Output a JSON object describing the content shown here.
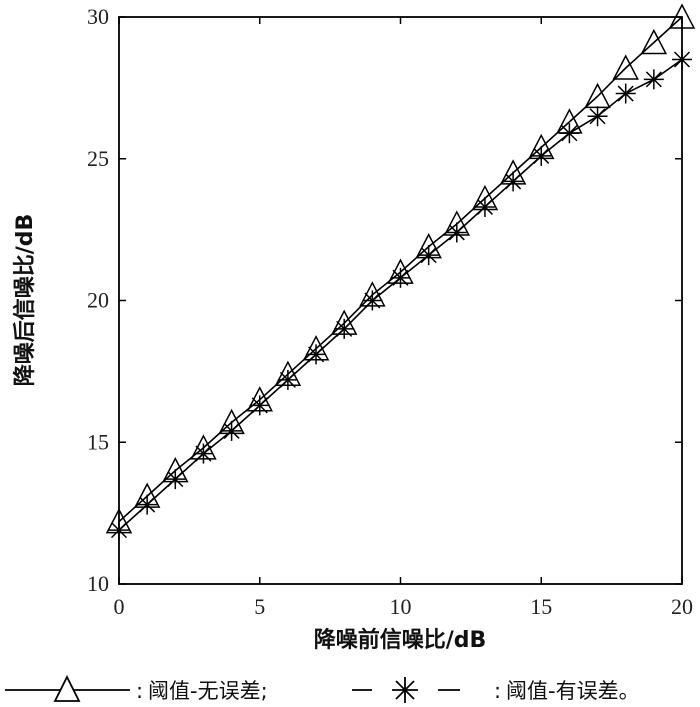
{
  "chart_data": {
    "type": "line",
    "title": "",
    "xlabel": "降噪前信噪比/dB",
    "ylabel": "降噪后信噪比/dB",
    "xlim": [
      0,
      20
    ],
    "ylim": [
      10,
      30
    ],
    "xticks": [
      0,
      5,
      10,
      15,
      20
    ],
    "yticks": [
      10,
      15,
      20,
      25,
      30
    ],
    "grid": false,
    "legend_position": "bottom",
    "x": [
      0,
      1,
      2,
      3,
      4,
      5,
      6,
      7,
      8,
      9,
      10,
      11,
      12,
      13,
      14,
      15,
      16,
      17,
      18,
      19,
      20
    ],
    "series": [
      {
        "name": "阈值-无误差",
        "marker": "triangle",
        "line_style": "solid",
        "color": "#000000",
        "values": [
          12.2,
          13.1,
          14.0,
          14.8,
          15.7,
          16.5,
          17.4,
          18.3,
          19.2,
          20.2,
          21.0,
          21.9,
          22.7,
          23.6,
          24.5,
          25.4,
          26.3,
          27.2,
          28.2,
          29.1,
          30.0
        ]
      },
      {
        "name": "阈值-有误差",
        "marker": "asterisk",
        "line_style": "solid",
        "color": "#000000",
        "values": [
          11.9,
          12.8,
          13.7,
          14.6,
          15.4,
          16.3,
          17.2,
          18.1,
          19.0,
          20.0,
          20.8,
          21.6,
          22.4,
          23.3,
          24.2,
          25.1,
          25.9,
          26.5,
          27.3,
          27.8,
          28.5
        ]
      }
    ]
  },
  "legend": {
    "separator": ":",
    "series1_text": "阈值-无误差;",
    "series2_text": "阈值-有误差。"
  }
}
